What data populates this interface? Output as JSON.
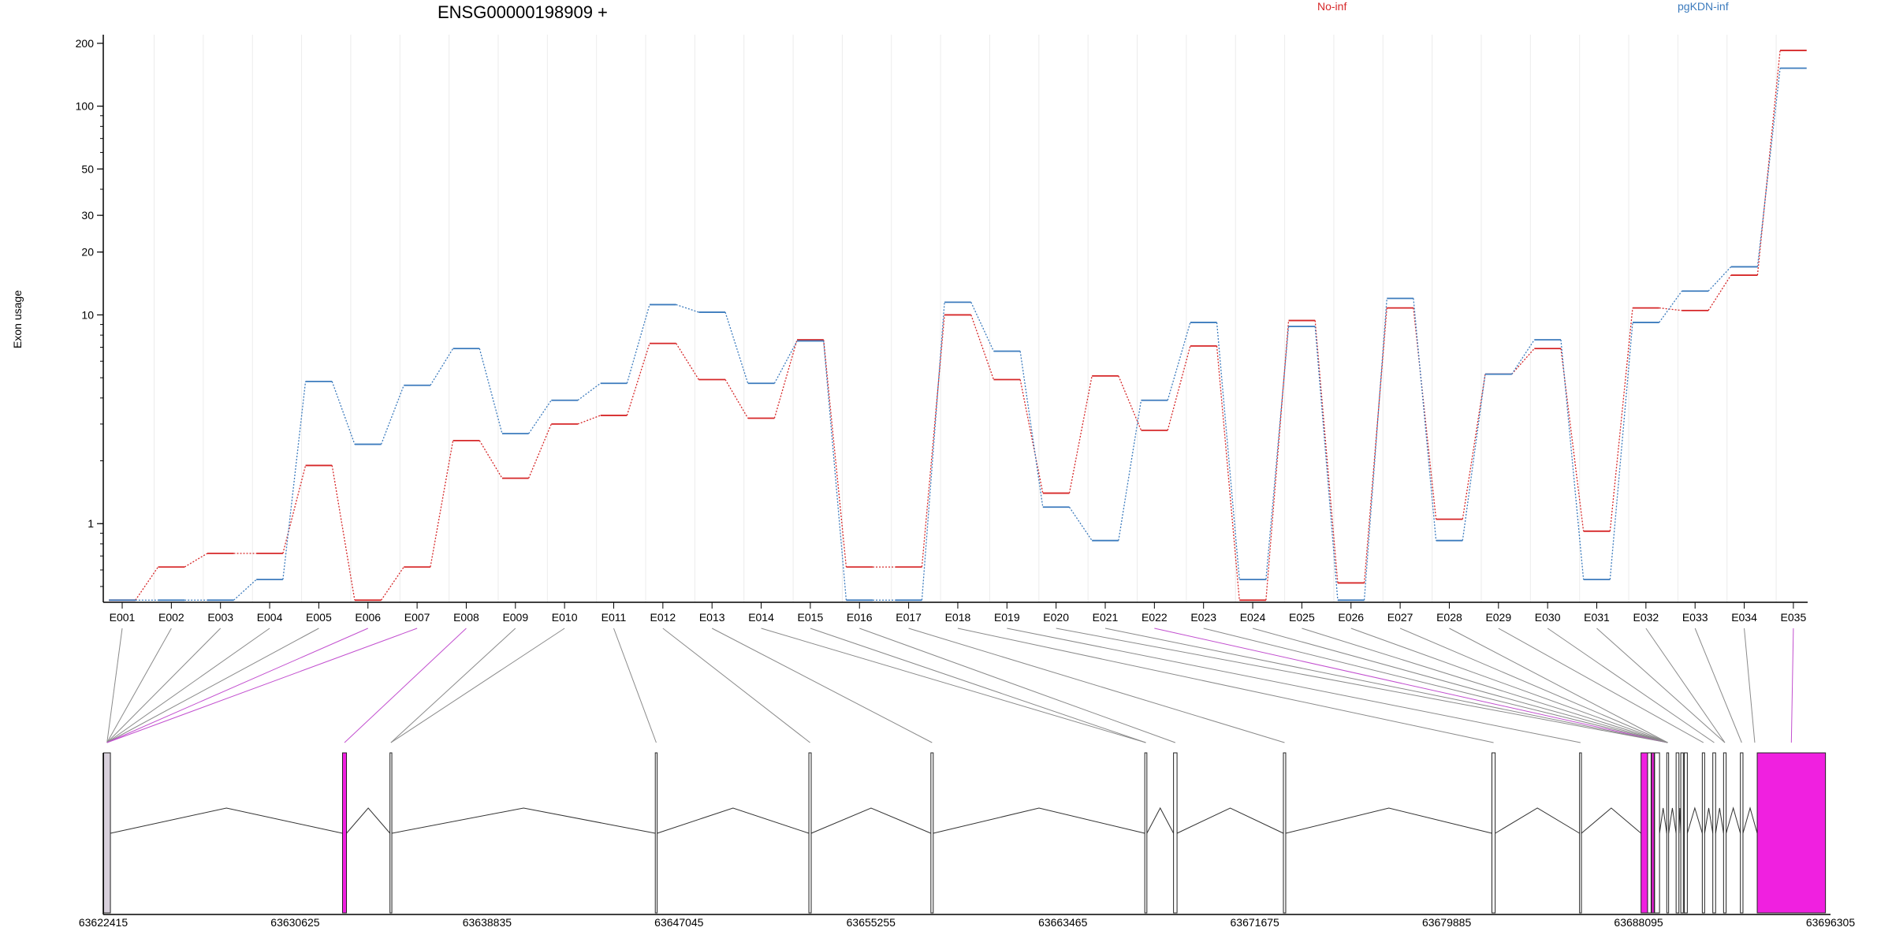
{
  "chart_data": {
    "type": "line",
    "title": "ENSG00000198909 +",
    "ylabel": "Exon usage",
    "xlabel": "",
    "y_scale": "log",
    "ylim": [
      0.42,
      220
    ],
    "y_ticks": [
      1,
      10,
      20,
      30,
      50,
      100,
      200
    ],
    "y_tick_labels": [
      "1",
      "10",
      "20",
      "30",
      "50",
      "100",
      "200"
    ],
    "grid": "vertical lines at each exon",
    "legend_placement": "top",
    "categories": [
      "E001",
      "E002",
      "E003",
      "E004",
      "E005",
      "E006",
      "E007",
      "E008",
      "E009",
      "E010",
      "E011",
      "E012",
      "E013",
      "E014",
      "E015",
      "E016",
      "E017",
      "E018",
      "E019",
      "E020",
      "E021",
      "E022",
      "E023",
      "E024",
      "E025",
      "E026",
      "E027",
      "E028",
      "E029",
      "E030",
      "E031",
      "E032",
      "E033",
      "E034",
      "E035"
    ],
    "series": [
      {
        "name": "No-inf",
        "color": "#d62728",
        "values": [
          0.43,
          0.62,
          0.72,
          0.72,
          1.9,
          0.43,
          0.62,
          2.5,
          1.65,
          3.0,
          3.3,
          7.3,
          4.9,
          3.2,
          7.6,
          0.62,
          0.62,
          10.0,
          4.9,
          1.4,
          5.1,
          2.8,
          7.1,
          0.43,
          9.4,
          0.52,
          10.8,
          1.05,
          5.2,
          6.9,
          0.92,
          10.8,
          10.5,
          15.5,
          185
        ]
      },
      {
        "name": "pgKDN-inf",
        "color": "#3c7bbd",
        "values": [
          0.43,
          0.43,
          0.43,
          0.54,
          4.8,
          2.4,
          4.6,
          6.9,
          2.7,
          3.9,
          4.7,
          11.2,
          10.3,
          4.7,
          7.5,
          0.43,
          0.43,
          11.5,
          6.7,
          1.2,
          0.83,
          3.9,
          9.2,
          0.54,
          8.8,
          0.43,
          12.0,
          0.83,
          5.2,
          7.6,
          0.54,
          9.2,
          13.0,
          17.0,
          152
        ]
      }
    ]
  },
  "gene_model": {
    "x_ticks": [
      "63622415",
      "63630625",
      "63638835",
      "63647045",
      "63655255",
      "63663465",
      "63671675",
      "63679885",
      "63688095",
      "63696305"
    ],
    "range": [
      63622415,
      63696305
    ],
    "highlight_color": "#f020e0",
    "exons": [
      {
        "id": "E001",
        "start": 63622430,
        "end": 63622720,
        "hl": false
      },
      {
        "id": "E002",
        "start": 63622430,
        "end": 63622720,
        "hl": false
      },
      {
        "id": "E003",
        "start": 63622430,
        "end": 63622720,
        "hl": false
      },
      {
        "id": "E004",
        "start": 63622430,
        "end": 63622720,
        "hl": false
      },
      {
        "id": "E005",
        "start": 63622430,
        "end": 63622720,
        "hl": false
      },
      {
        "id": "E006",
        "start": 63622430,
        "end": 63622720,
        "hl": true
      },
      {
        "id": "E007",
        "start": 63622430,
        "end": 63622720,
        "hl": true
      },
      {
        "id": "E008",
        "start": 63632650,
        "end": 63632820,
        "hl": true
      },
      {
        "id": "E009",
        "start": 63634680,
        "end": 63634760,
        "hl": false
      },
      {
        "id": "E010",
        "start": 63634680,
        "end": 63634760,
        "hl": false
      },
      {
        "id": "E011",
        "start": 63646030,
        "end": 63646110,
        "hl": false
      },
      {
        "id": "E012",
        "start": 63652600,
        "end": 63652700,
        "hl": false
      },
      {
        "id": "E013",
        "start": 63657820,
        "end": 63657920,
        "hl": false
      },
      {
        "id": "E014",
        "start": 63666970,
        "end": 63667060,
        "hl": false
      },
      {
        "id": "E015",
        "start": 63666970,
        "end": 63667060,
        "hl": false
      },
      {
        "id": "E016",
        "start": 63668200,
        "end": 63668350,
        "hl": false
      },
      {
        "id": "E017",
        "start": 63672900,
        "end": 63673000,
        "hl": false
      },
      {
        "id": "E018",
        "start": 63681820,
        "end": 63681960,
        "hl": false
      },
      {
        "id": "E019",
        "start": 63685570,
        "end": 63685650,
        "hl": false
      },
      {
        "id": "E020",
        "start": 63689300,
        "end": 63689380,
        "hl": false
      },
      {
        "id": "E021",
        "start": 63689300,
        "end": 63689380,
        "hl": false
      },
      {
        "id": "E022",
        "start": 63689300,
        "end": 63689380,
        "hl": true
      },
      {
        "id": "E023",
        "start": 63689300,
        "end": 63689380,
        "hl": false
      },
      {
        "id": "E024",
        "start": 63689300,
        "end": 63689380,
        "hl": false
      },
      {
        "id": "E025",
        "start": 63689300,
        "end": 63689380,
        "hl": false
      },
      {
        "id": "E026",
        "start": 63689300,
        "end": 63689380,
        "hl": false
      },
      {
        "id": "E027",
        "start": 63689300,
        "end": 63689380,
        "hl": false
      },
      {
        "id": "E028",
        "start": 63689300,
        "end": 63689380,
        "hl": false
      },
      {
        "id": "E029",
        "start": 63690820,
        "end": 63690920,
        "hl": false
      },
      {
        "id": "E030",
        "start": 63691270,
        "end": 63691390,
        "hl": false
      },
      {
        "id": "E031",
        "start": 63691730,
        "end": 63691840,
        "hl": false
      },
      {
        "id": "E032",
        "start": 63691730,
        "end": 63691840,
        "hl": false
      },
      {
        "id": "E033",
        "start": 63692450,
        "end": 63692560,
        "hl": false
      },
      {
        "id": "E034",
        "start": 63693010,
        "end": 63693120,
        "hl": false
      },
      {
        "id": "E035",
        "start": 63693170,
        "end": 63696090,
        "hl": true
      }
    ],
    "blocks": [
      {
        "start": 63622430,
        "end": 63622720,
        "fill": "#d8d0dc"
      },
      {
        "start": 63632650,
        "end": 63632820,
        "fill": "#f020e0"
      },
      {
        "start": 63634680,
        "end": 63634760,
        "fill": "#ffffff"
      },
      {
        "start": 63646030,
        "end": 63646110,
        "fill": "#ffffff"
      },
      {
        "start": 63652600,
        "end": 63652700,
        "fill": "#ffffff"
      },
      {
        "start": 63657820,
        "end": 63657920,
        "fill": "#ffffff"
      },
      {
        "start": 63666970,
        "end": 63667060,
        "fill": "#ffffff"
      },
      {
        "start": 63668200,
        "end": 63668350,
        "fill": "#ffffff"
      },
      {
        "start": 63672900,
        "end": 63673000,
        "fill": "#ffffff"
      },
      {
        "start": 63681820,
        "end": 63681960,
        "fill": "#ffffff"
      },
      {
        "start": 63685570,
        "end": 63685650,
        "fill": "#ffffff"
      },
      {
        "start": 63688200,
        "end": 63688480,
        "fill": "#f020e0"
      },
      {
        "start": 63688480,
        "end": 63688630,
        "fill": "#ffffff"
      },
      {
        "start": 63688650,
        "end": 63688760,
        "fill": "#f020e0"
      },
      {
        "start": 63688780,
        "end": 63688990,
        "fill": "#ffffff"
      },
      {
        "start": 63689300,
        "end": 63689380,
        "fill": "#ffffff"
      },
      {
        "start": 63689700,
        "end": 63689820,
        "fill": "#ffffff"
      },
      {
        "start": 63689900,
        "end": 63690010,
        "fill": "#ffffff"
      },
      {
        "start": 63690050,
        "end": 63690180,
        "fill": "#ffffff"
      },
      {
        "start": 63690820,
        "end": 63690920,
        "fill": "#ffffff"
      },
      {
        "start": 63691270,
        "end": 63691390,
        "fill": "#ffffff"
      },
      {
        "start": 63691730,
        "end": 63691840,
        "fill": "#ffffff"
      },
      {
        "start": 63692450,
        "end": 63692560,
        "fill": "#ffffff"
      },
      {
        "start": 63693170,
        "end": 63696090,
        "fill": "#f020e0"
      }
    ]
  }
}
